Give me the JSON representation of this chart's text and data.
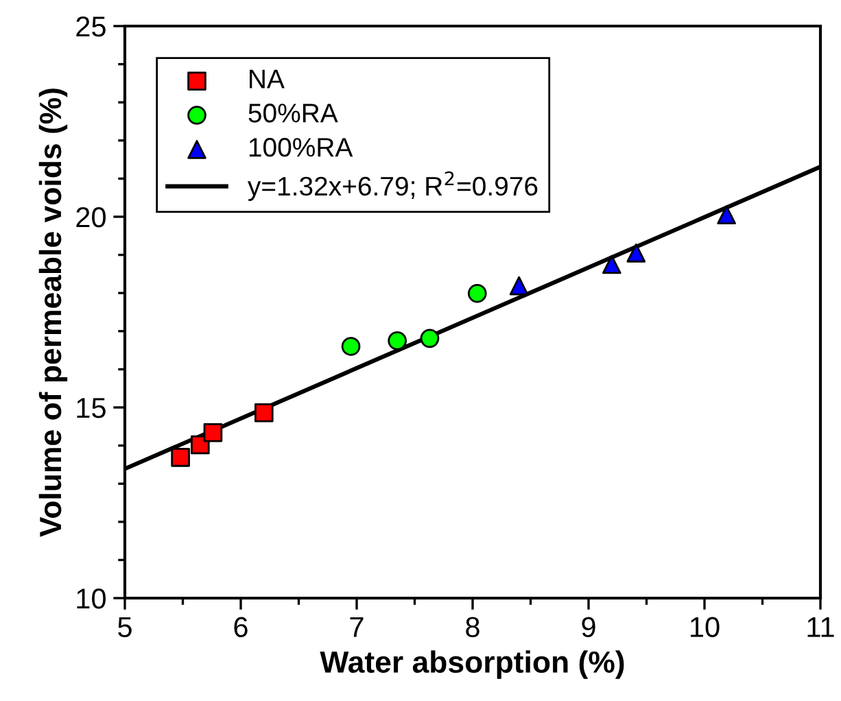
{
  "chart_data": {
    "type": "scatter",
    "xlabel": "Water absorption (%)",
    "ylabel": "Volume of permeable voids (%)",
    "xlim": [
      5,
      11
    ],
    "xticks": [
      5,
      6,
      7,
      8,
      9,
      10,
      11
    ],
    "ylim": [
      10,
      25
    ],
    "yticks": [
      10,
      15,
      20,
      25
    ],
    "grid": false,
    "legend": "top left",
    "series": [
      {
        "name": "NA",
        "color": "#ff0000",
        "marker": "square",
        "x": [
          5.48,
          5.65,
          5.76,
          6.2
        ],
        "values": [
          13.69,
          14.02,
          14.34,
          14.86
        ]
      },
      {
        "name": "50%RA",
        "color": "#00ff00",
        "marker": "circle",
        "x": [
          6.95,
          7.35,
          7.63,
          8.04
        ],
        "values": [
          16.6,
          16.75,
          16.81,
          17.99
        ]
      },
      {
        "name": "100%RA",
        "color": "#0000ff",
        "marker": "triangle",
        "x": [
          8.4,
          9.2,
          9.41,
          10.19
        ],
        "values": [
          18.19,
          18.75,
          19.05,
          20.05
        ]
      },
      {
        "name": "y=1.32x+6.79; R$^{2}$=0.976",
        "type": "line",
        "color": "#000000",
        "marker": "none",
        "line_style": "solid",
        "x": [
          5,
          11
        ],
        "values": [
          13.39,
          21.31
        ]
      }
    ]
  }
}
